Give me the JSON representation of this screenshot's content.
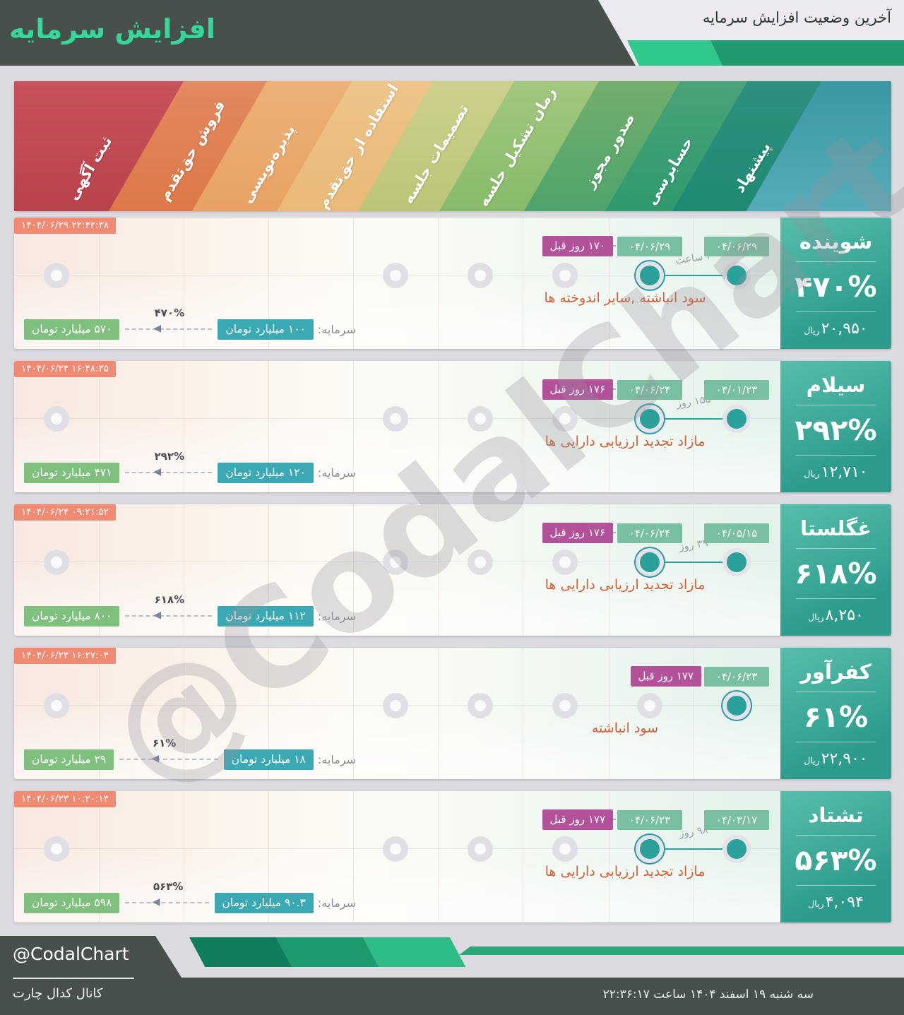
{
  "header": {
    "title": "افزایش سرمایه",
    "subtitle": "آخرین وضعیت افزایش سرمایه"
  },
  "chart_data": {
    "type": "table",
    "title": "آخرین وضعیت افزایش سرمایه",
    "stages": [
      "ثبت آگهی",
      "فروش حق‌تقدم",
      "پذیره‌نویسی",
      "استفاده از حق‌تقدم",
      "تصمیمات جلسه",
      "زمان تشکیل جلسه",
      "صدور مجوز",
      "حسابرسی",
      "پیشنهاد"
    ],
    "rows": [
      {
        "name": "شوینده",
        "percent": "۴۷۰%",
        "rial": "۲۰,۹۵۰",
        "rial_unit": "ریال",
        "timestamp": "۱۴۰۴/۰۶/۲۹ ۲۲:۴۲:۳۸",
        "days_ago": "۱۷۰ روز قبل",
        "latest_date": "۰۴/۰۶/۲۹",
        "proposal_date": "۰۴/۰۶/۲۹",
        "duration": "۳ ساعت",
        "note": "سود انباشته ,سایر اندوخته ها",
        "capital_label": "سرمایه:",
        "capital_before": "۱۰۰ میلیارد تومان",
        "capital_after": "۵۷۰ میلیارد تومان"
      },
      {
        "name": "سیلام",
        "percent": "۲۹۲%",
        "rial": "۱۲,۷۱۰",
        "rial_unit": "ریال",
        "timestamp": "۱۴۰۴/۰۶/۲۴ ۱۶:۴۸:۳۵",
        "days_ago": "۱۷۶ روز قبل",
        "latest_date": "۰۴/۰۶/۲۴",
        "proposal_date": "۰۴/۰۱/۲۳",
        "duration": "۱۵۵ روز",
        "note": "مازاد تجدید ارزیابی دارایی ها",
        "capital_label": "سرمایه:",
        "capital_before": "۱۲۰ میلیارد تومان",
        "capital_after": "۴۷۱ میلیارد تومان"
      },
      {
        "name": "غگلستا",
        "percent": "۶۱۸%",
        "rial": "۸,۲۵۰",
        "rial_unit": "ریال",
        "timestamp": "۱۴۰۴/۰۶/۲۴ ۰۹:۲۱:۵۲",
        "days_ago": "۱۷۶ روز قبل",
        "latest_date": "۰۴/۰۶/۲۴",
        "proposal_date": "۰۴/۰۵/۱۵",
        "duration": "۳۹ روز",
        "note": "مازاد تجدید ارزیابی دارایی ها",
        "capital_label": "سرمایه:",
        "capital_before": "۱۱۲ میلیارد تومان",
        "capital_after": "۸۰۰ میلیارد تومان"
      },
      {
        "name": "کفرآور",
        "percent": "۶۱%",
        "rial": "۲۲,۹۰۰",
        "rial_unit": "ریال",
        "timestamp": "۱۴۰۴/۰۶/۲۳ ۱۶:۲۷:۰۴",
        "days_ago": "۱۷۷ روز قبل",
        "latest_date": null,
        "proposal_date": "۰۴/۰۶/۲۳",
        "duration": null,
        "note": "سود انباشته",
        "capital_label": "سرمایه:",
        "capital_before": "۱۸ میلیارد تومان",
        "capital_after": "۲۹ میلیارد تومان"
      },
      {
        "name": "تشتاد",
        "percent": "۵۶۳%",
        "rial": "۴,۰۹۴",
        "rial_unit": "ریال",
        "timestamp": "۱۴۰۴/۰۶/۲۳ ۱۰:۲۰:۱۴",
        "days_ago": "۱۷۷ روز قبل",
        "latest_date": "۰۴/۰۶/۲۳",
        "proposal_date": "۰۴/۰۳/۱۷",
        "duration": "۹۸ روز",
        "note": "مازاد تجدید ارزیابی دارایی ها",
        "capital_label": "سرمایه:",
        "capital_before": "۹۰.۳ میلیارد تومان",
        "capital_after": "۵۹۸ میلیارد تومان"
      }
    ]
  },
  "footer": {
    "handle": "@CodalChart",
    "channel": "کانال کدال چارت",
    "datetime": "سه شنبه ۱۹ اسفند ۱۴۰۴ ساعت ۲۲:۳۶:۱۷"
  },
  "watermark": "@CodalChart",
  "colors": {
    "accent_green": "#35d89a",
    "stage_gradients": [
      [
        "#c7525b",
        "#b8434c"
      ],
      [
        "#e28a60",
        "#dd7747"
      ],
      [
        "#edb177",
        "#e8a263"
      ],
      [
        "#eec489",
        "#e9b977"
      ],
      [
        "#cdd08d",
        "#bcc577"
      ],
      [
        "#a3c77f",
        "#86bb6a"
      ],
      [
        "#74ae6c",
        "#4da46c"
      ],
      [
        "#4aa379",
        "#2f9a6d"
      ],
      [
        "#2f8f7e",
        "#1f8a74"
      ],
      [
        "#3a98a2",
        "#56acb9"
      ]
    ]
  }
}
